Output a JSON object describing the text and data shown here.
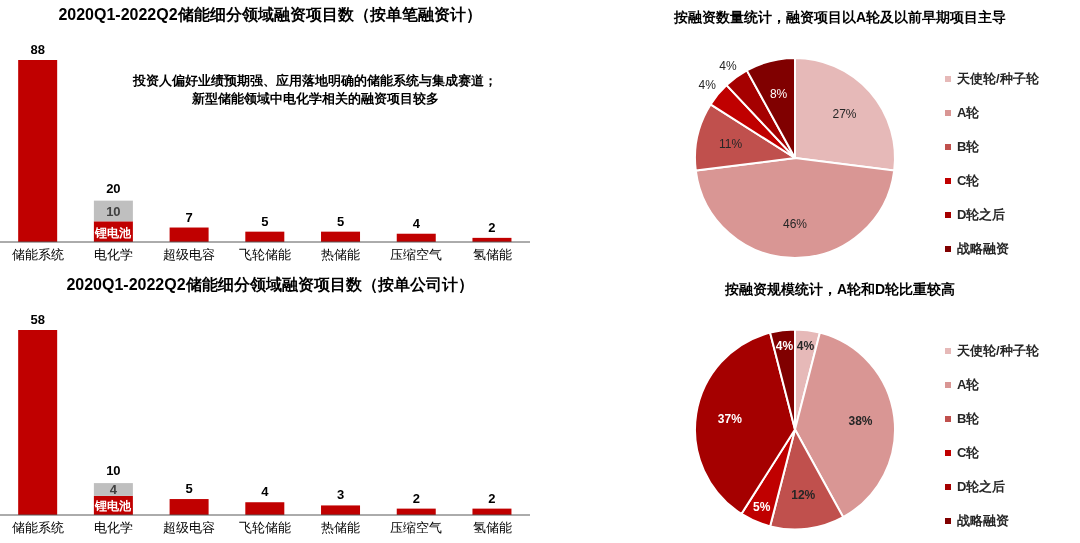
{
  "chart_data": [
    {
      "type": "bar",
      "title": "2020Q1-2022Q2储能细分领域融资项目数（按单笔融资计）",
      "categories": [
        "储能系统",
        "电化学",
        "超级电容",
        "飞轮储能",
        "热储能",
        "压缩空气",
        "氢储能"
      ],
      "stacked": true,
      "legend": false,
      "grid": false,
      "series": [
        {
          "color": "#c00000",
          "values": [
            88,
            10,
            7,
            5,
            5,
            4,
            2
          ],
          "value_labels": [
            "88",
            null,
            "7",
            "5",
            "5",
            "4",
            "2"
          ]
        },
        {
          "color": "#bfbfbf",
          "values": [
            null,
            10,
            null,
            null,
            null,
            null,
            null
          ],
          "value_labels": [
            null,
            "10",
            null,
            null,
            null,
            null,
            null
          ]
        }
      ],
      "totals": [
        null,
        "20",
        null,
        null,
        null,
        null,
        null
      ],
      "annotations": [
        "锂电池",
        "投资人偏好业绩预期强、应用落地明确的储能系统与集成赛道；",
        "新型储能领域中电化学相关的融资项目较多"
      ]
    },
    {
      "type": "bar",
      "title": "2020Q1-2022Q2储能细分领域融资项目数（按单公司计）",
      "categories": [
        "储能系统",
        "电化学",
        "超级电容",
        "飞轮储能",
        "热储能",
        "压缩空气",
        "氢储能"
      ],
      "stacked": true,
      "legend": false,
      "grid": false,
      "series": [
        {
          "color": "#c00000",
          "values": [
            58,
            6,
            5,
            4,
            3,
            2,
            2
          ],
          "value_labels": [
            "58",
            null,
            "5",
            "4",
            "3",
            "2",
            "2"
          ]
        },
        {
          "color": "#bfbfbf",
          "values": [
            null,
            4,
            null,
            null,
            null,
            null,
            null
          ],
          "value_labels": [
            null,
            "4",
            null,
            null,
            null,
            null,
            null
          ]
        }
      ],
      "totals": [
        null,
        "10",
        null,
        null,
        null,
        null,
        null
      ],
      "annotations": [
        "锂电池"
      ]
    },
    {
      "type": "pie",
      "title": "按融资数量统计，融资项目以A轮及以前早期项目主导",
      "categories": [
        "天使轮/种子轮",
        "A轮",
        "B轮",
        "C轮",
        "D轮之后",
        "战略融资"
      ],
      "values": [
        27,
        46,
        11,
        4,
        4,
        8
      ],
      "value_labels": [
        "27%",
        "46%",
        "11%",
        "4%",
        "4%",
        "8%"
      ],
      "colors": [
        "#e6b9b8",
        "#d99694",
        "#c0504d",
        "#c00000",
        "#a50000",
        "#800000"
      ],
      "legend": "right"
    },
    {
      "type": "pie",
      "title": "按融资规模统计，A轮和D轮比重较高",
      "categories": [
        "天使轮/种子轮",
        "A轮",
        "B轮",
        "C轮",
        "D轮之后",
        "战略融资"
      ],
      "values": [
        4,
        38,
        12,
        5,
        37,
        4
      ],
      "value_labels": [
        "4%",
        "38%",
        "12%",
        "5%",
        "37%",
        "4%"
      ],
      "colors": [
        "#e6b9b8",
        "#d99694",
        "#c0504d",
        "#c00000",
        "#a50000",
        "#800000"
      ],
      "legend": "right"
    }
  ]
}
